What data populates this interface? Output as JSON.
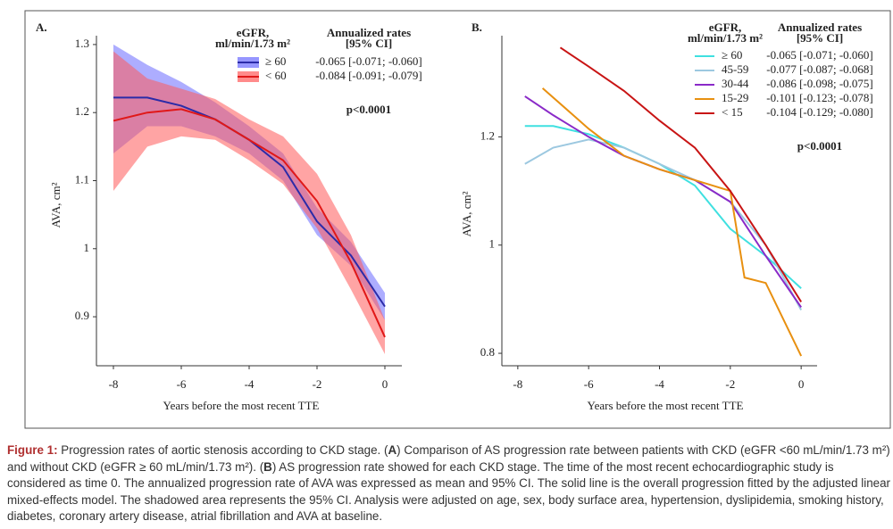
{
  "chart_data": [
    {
      "type": "line",
      "panel": "A.",
      "xlabel": "Years before the most recent TTE",
      "ylabel": "AVA, cm²",
      "xlim": [
        -8.5,
        0.5
      ],
      "ylim": [
        0.828,
        1.313
      ],
      "xticks": [
        -8,
        -6,
        -4,
        -2,
        0
      ],
      "yticks": [
        0.9,
        1.0,
        1.1,
        1.2,
        1.3
      ],
      "legend_title": [
        "eGFR,",
        "ml/min/1.73 m²"
      ],
      "rates_title": [
        "Annualized rates",
        "[95% CI]"
      ],
      "annotation": "p<0.0001",
      "series": [
        {
          "name": "≥ 60",
          "color": "#2b2ba8",
          "band_color": "#6a6aff",
          "rate": "-0.065 [-0.071; -0.060]",
          "x": [
            -8,
            -7,
            -6,
            -5,
            -4,
            -3,
            -2,
            -1,
            0
          ],
          "values": [
            1.222,
            1.222,
            1.21,
            1.19,
            1.16,
            1.12,
            1.04,
            0.99,
            0.915
          ],
          "upper": [
            1.3,
            1.27,
            1.245,
            1.215,
            1.18,
            1.14,
            1.06,
            1.01,
            0.935
          ],
          "lower": [
            1.14,
            1.18,
            1.18,
            1.165,
            1.14,
            1.1,
            1.02,
            0.975,
            0.895
          ]
        },
        {
          "name": "< 60",
          "color": "#e01818",
          "band_color": "#ff5a5a",
          "rate": "-0.084 [-0.091; -0.079]",
          "x": [
            -8,
            -7,
            -6,
            -5,
            -4,
            -3,
            -2,
            -1,
            0
          ],
          "values": [
            1.188,
            1.2,
            1.205,
            1.19,
            1.16,
            1.13,
            1.07,
            0.98,
            0.87
          ],
          "upper": [
            1.29,
            1.25,
            1.235,
            1.22,
            1.19,
            1.165,
            1.11,
            1.02,
            0.895
          ],
          "lower": [
            1.085,
            1.15,
            1.165,
            1.16,
            1.13,
            1.095,
            1.03,
            0.94,
            0.845
          ]
        }
      ]
    },
    {
      "type": "line",
      "panel": "B.",
      "xlabel": "Years before the most recent TTE",
      "ylabel": "AVA, cm²",
      "xlim": [
        -8.45,
        0.45
      ],
      "ylim": [
        0.777,
        1.387
      ],
      "xticks": [
        -8,
        -6,
        -4,
        -2,
        0
      ],
      "yticks": [
        0.8,
        1.0,
        1.2
      ],
      "legend_title": [
        "eGFR,",
        "ml/min/1.73 m²"
      ],
      "rates_title": [
        "Annualized rates",
        "[95% CI]"
      ],
      "annotation": "p<0.0001",
      "series": [
        {
          "name": "≥ 60",
          "color": "#3fe0e0",
          "rate": "-0.065 [-0.071; -0.060]",
          "x": [
            -7.8,
            -7,
            -6,
            -5,
            -4,
            -3,
            -2,
            -1,
            0
          ],
          "values": [
            1.22,
            1.22,
            1.205,
            1.18,
            1.15,
            1.11,
            1.03,
            0.98,
            0.92
          ]
        },
        {
          "name": "45-59",
          "color": "#9cc8e0",
          "rate": "-0.077 [-0.087; -0.068]",
          "x": [
            -7.8,
            -7,
            -6,
            -5,
            -4,
            -3,
            -2,
            -1,
            0
          ],
          "values": [
            1.15,
            1.18,
            1.195,
            1.18,
            1.15,
            1.12,
            1.08,
            1.0,
            0.88
          ]
        },
        {
          "name": "30-44",
          "color": "#8a2ac8",
          "rate": "-0.086 [-0.098; -0.075]",
          "x": [
            -7.8,
            -7,
            -6,
            -5,
            -4,
            -3,
            -2,
            -1,
            0
          ],
          "values": [
            1.275,
            1.24,
            1.2,
            1.165,
            1.14,
            1.12,
            1.08,
            0.98,
            0.885
          ]
        },
        {
          "name": "15-29",
          "color": "#e89010",
          "rate": "-0.101 [-0.123; -0.078]",
          "x": [
            -7.3,
            -6,
            -5,
            -4,
            -3,
            -2,
            -1.6,
            -1,
            0
          ],
          "values": [
            1.29,
            1.215,
            1.165,
            1.14,
            1.12,
            1.1,
            0.94,
            0.93,
            0.795
          ]
        },
        {
          "name": "< 15",
          "color": "#c81414",
          "rate": "-0.104 [-0.129; -0.080]",
          "x": [
            -6.8,
            -6,
            -5,
            -4,
            -3,
            -2,
            -1,
            0
          ],
          "values": [
            1.365,
            1.33,
            1.285,
            1.23,
            1.18,
            1.1,
            1.0,
            0.895
          ]
        }
      ]
    }
  ],
  "caption": {
    "label": "Figure 1:",
    "parts": [
      "Progression rates of aortic stenosis according to CKD stage. (",
      "A",
      ") Comparison of AS progression rate between patients with CKD (eGFR <60 mL/min/1.73 m²) and without CKD (eGFR ≥ 60 mL/min/1.73 m²). (",
      "B",
      ") AS progression rate showed for each CKD stage. The time of the most recent echocardiographic study is considered as time 0. The annualized progression rate of AVA was expressed as mean and 95% CI. The solid line is the overall progression fitted by the adjusted linear mixed-effects model. The shadowed area represents the 95% CI. Analysis were adjusted on age, sex, body surface area, hypertension, dyslipidemia, smoking history, diabetes, coronary artery disease, atrial fibrillation and AVA at baseline."
    ]
  }
}
